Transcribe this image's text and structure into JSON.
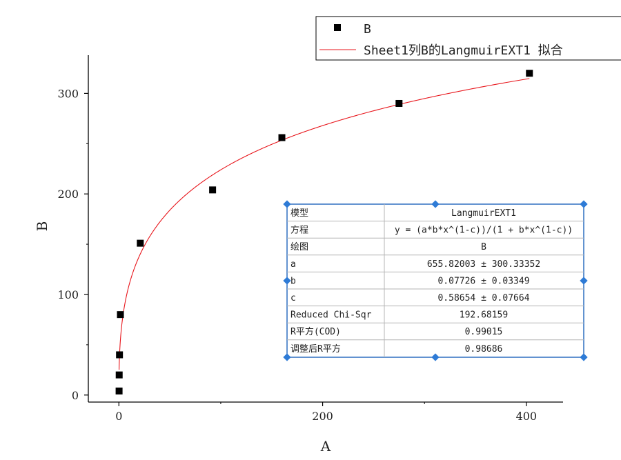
{
  "chart_data": {
    "type": "scatter",
    "xlabel": "A",
    "ylabel": "B",
    "xlim": [
      -30,
      436
    ],
    "ylim": [
      -7,
      338
    ],
    "xticks": [
      0,
      200,
      400
    ],
    "yticks": [
      0,
      100,
      200,
      300
    ],
    "series": [
      {
        "name": "B",
        "kind": "points",
        "x": [
          0.2,
          0.3,
          0.6,
          1.5,
          21,
          92,
          160,
          275,
          403
        ],
        "y": [
          4,
          20,
          40,
          80,
          151,
          204,
          256,
          290,
          320
        ],
        "color": "#000000"
      },
      {
        "name": "Sheet1列B的LangmuirEXT1 拟合",
        "kind": "fit",
        "model": "LangmuirEXT1",
        "params": {
          "a": 655.82003,
          "b": 0.07726,
          "c": 0.58654
        },
        "x_range": [
          0.2,
          403
        ],
        "color": "#e8151b"
      }
    ],
    "legend": {
      "placement": "top-right",
      "entries": [
        "B",
        "Sheet1列B的LangmuirEXT1 拟合"
      ]
    },
    "fit_table": {
      "rows": [
        {
          "label": "模型",
          "value": "LangmuirEXT1"
        },
        {
          "label": "方程",
          "value": "y = (a*b*x^(1-c))/(1 + b*x^(1-c))"
        },
        {
          "label": "绘图",
          "value": "B"
        },
        {
          "label": "a",
          "value": "655.82003 ± 300.33352"
        },
        {
          "label": "b",
          "value": "0.07726 ± 0.03349"
        },
        {
          "label": "c",
          "value": "0.58654 ± 0.07664"
        },
        {
          "label": "Reduced Chi-Sqr",
          "value": "192.68159"
        },
        {
          "label": "R平方(COD)",
          "value": "0.99015"
        },
        {
          "label": "调整后R平方",
          "value": "0.98686"
        }
      ]
    }
  }
}
